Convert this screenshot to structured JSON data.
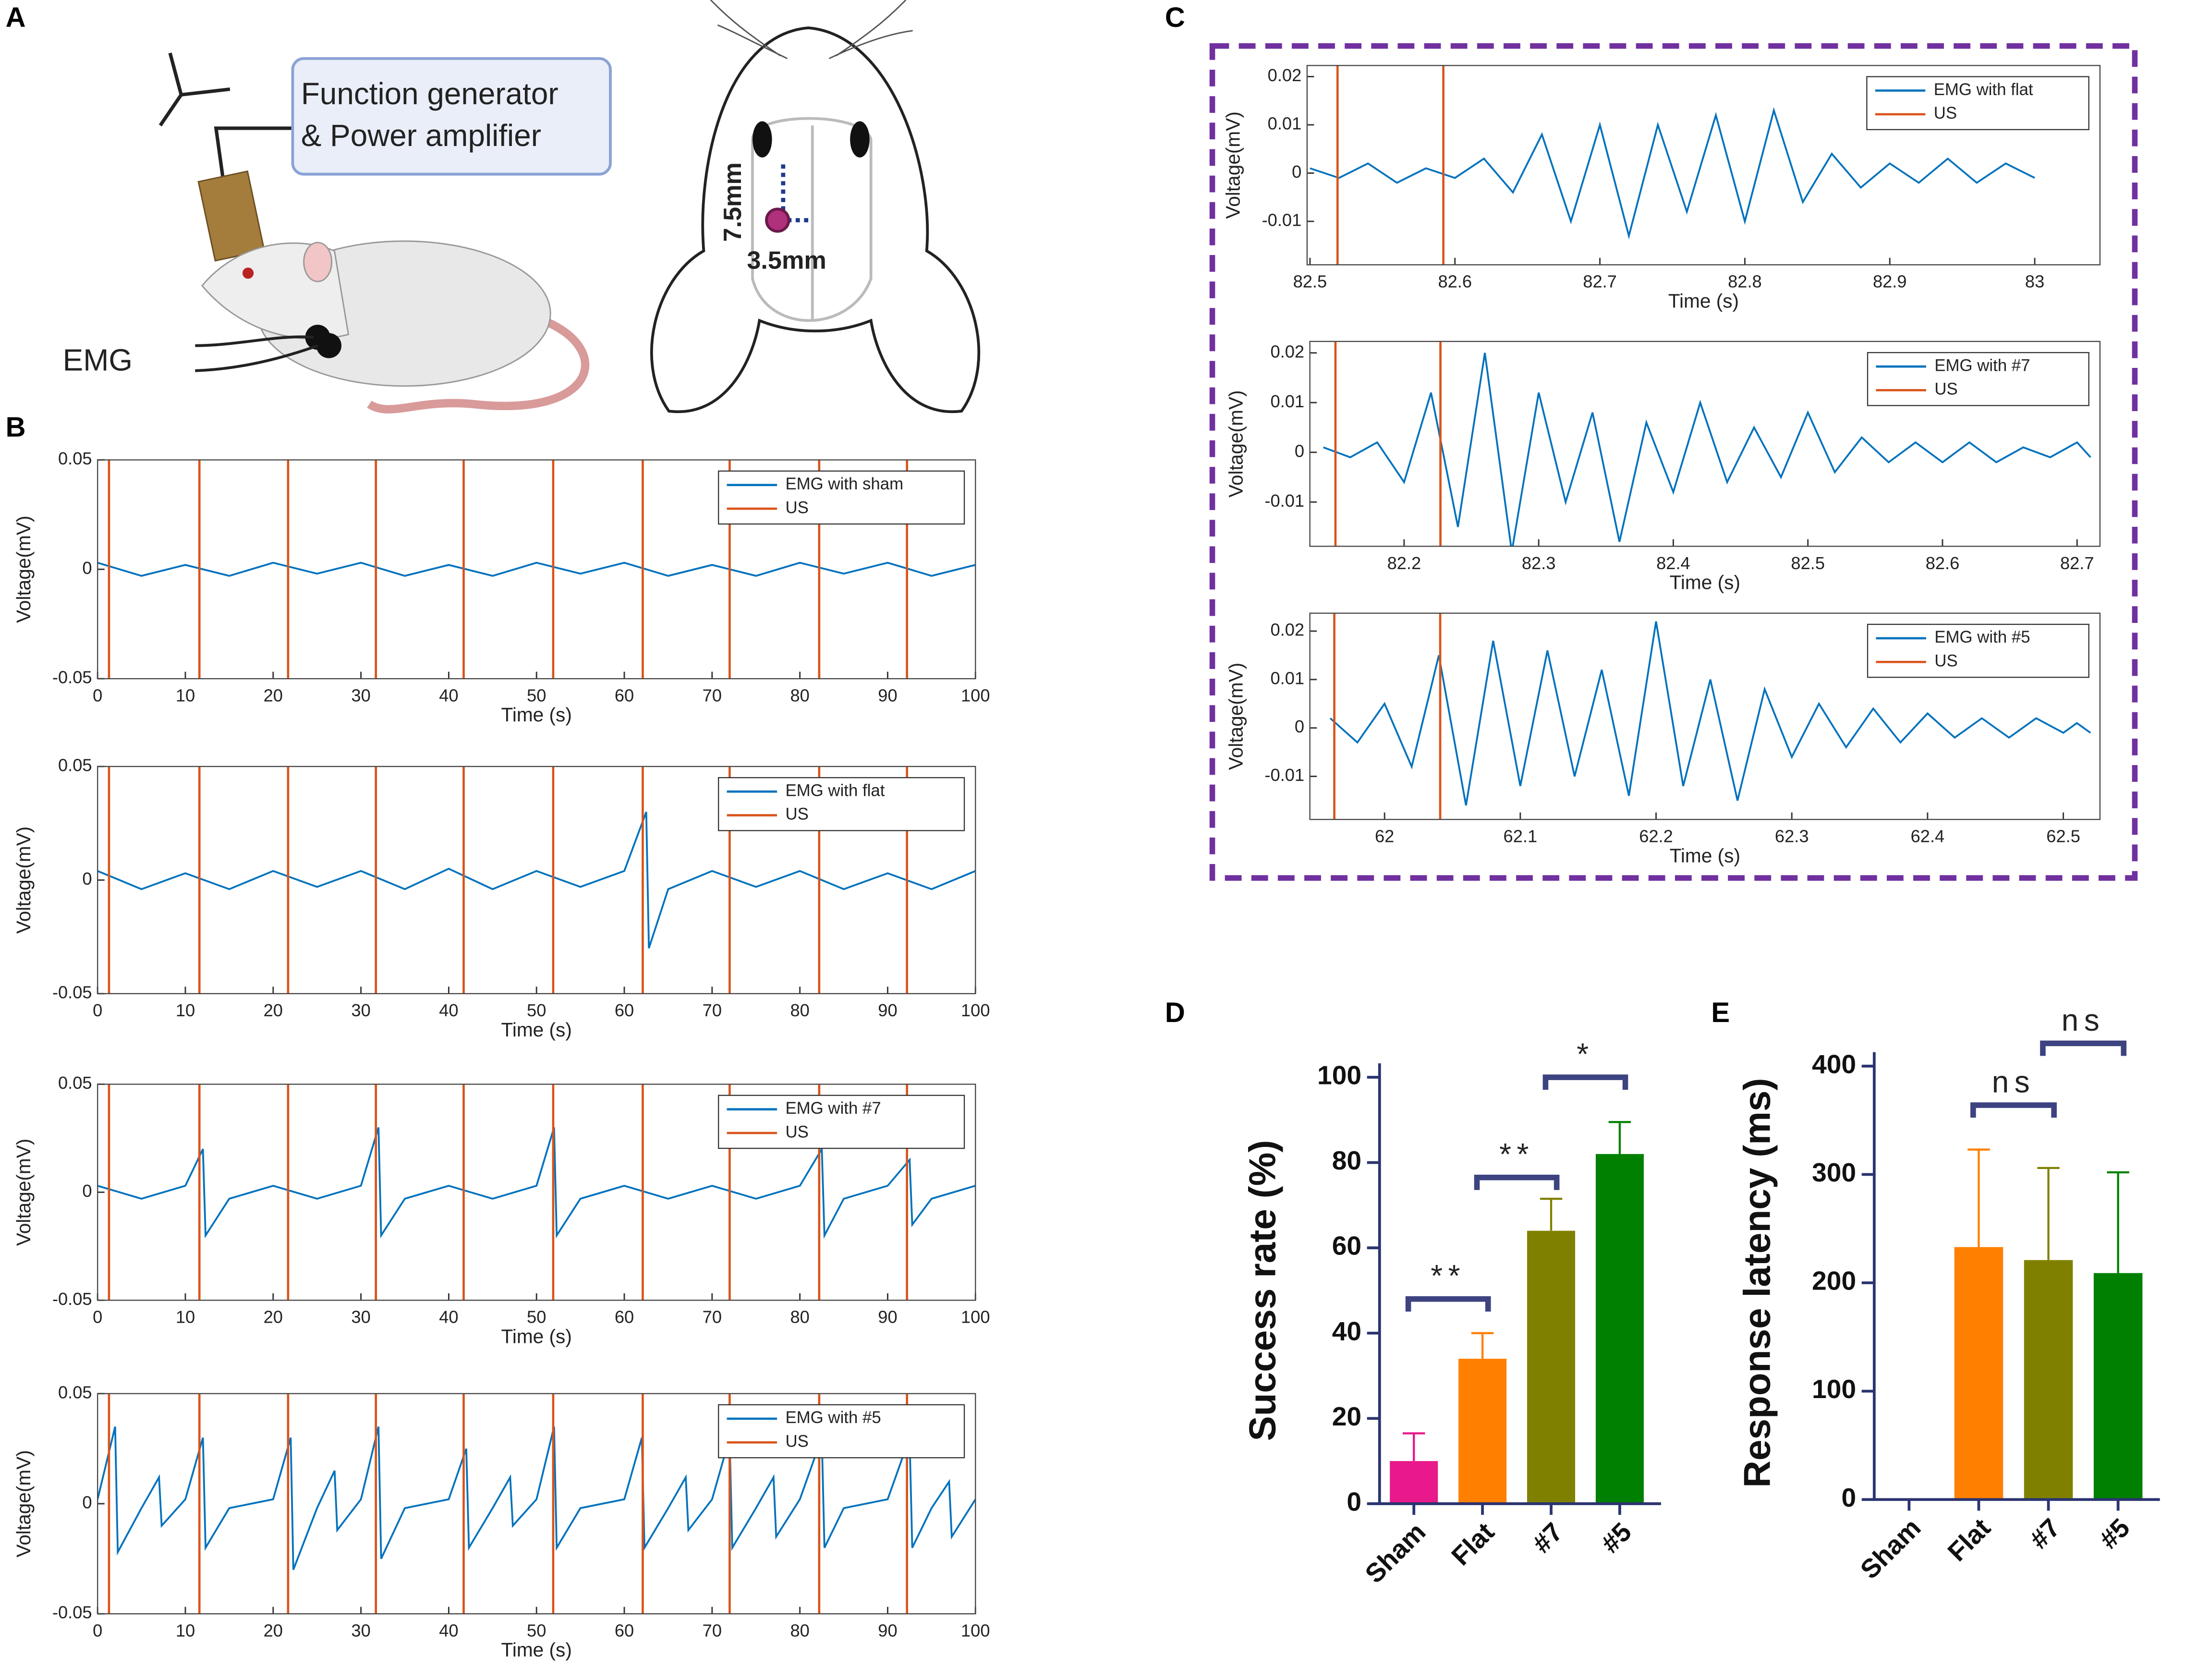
{
  "panel_labels": [
    "A",
    "B",
    "C",
    "D",
    "E"
  ],
  "panel_a": {
    "generator_lines": [
      "Function generator",
      "& Power amplifier"
    ],
    "emg": "EMG",
    "vertical_distance": "7.5mm",
    "lateral_distance": "3.5mm"
  },
  "chart_data": [
    {
      "type": "line",
      "xlabel": "Time (s)",
      "ylabel": "Voltage(mV)",
      "xlim": [
        0,
        100
      ],
      "xticks": [
        0,
        10,
        20,
        30,
        40,
        50,
        60,
        70,
        80,
        90,
        100
      ],
      "ylim": [
        -0.05,
        0.05
      ],
      "yticks": [
        -0.05,
        0,
        0.05
      ],
      "legend": "upper right",
      "series": [
        {
          "name": "EMG with sham",
          "color": "#0072bd",
          "x": [
            0,
            5,
            10,
            15,
            20,
            25,
            30,
            35,
            40,
            45,
            50,
            55,
            60,
            65,
            70,
            75,
            80,
            85,
            90,
            95,
            100
          ],
          "values": [
            0.003,
            -0.003,
            0.002,
            -0.003,
            0.003,
            -0.002,
            0.003,
            -0.003,
            0.002,
            -0.003,
            0.003,
            -0.002,
            0.003,
            -0.003,
            0.002,
            -0.003,
            0.003,
            -0.002,
            0.003,
            -0.003,
            0.002
          ]
        },
        {
          "name": "US",
          "color": "#d95319",
          "x": [
            1.3,
            11.6,
            21.7,
            31.7,
            41.7,
            51.9,
            62.1,
            72,
            82.2,
            92.2
          ]
        }
      ]
    },
    {
      "type": "line",
      "xlabel": "Time (s)",
      "ylabel": "Voltage(mV)",
      "xlim": [
        0,
        100
      ],
      "xticks": [
        0,
        10,
        20,
        30,
        40,
        50,
        60,
        70,
        80,
        90,
        100
      ],
      "ylim": [
        -0.05,
        0.05
      ],
      "yticks": [
        -0.05,
        0,
        0.05
      ],
      "legend": "upper right",
      "series": [
        {
          "name": "EMG with flat",
          "color": "#0072bd",
          "x": [
            0,
            5,
            10,
            15,
            20,
            25,
            30,
            35,
            40,
            45,
            50,
            55,
            60,
            62.5,
            62.8,
            65,
            70,
            75,
            80,
            85,
            90,
            95,
            100
          ],
          "values": [
            0.004,
            -0.004,
            0.003,
            -0.004,
            0.004,
            -0.003,
            0.004,
            -0.004,
            0.005,
            -0.004,
            0.004,
            -0.003,
            0.004,
            0.03,
            -0.03,
            -0.004,
            0.004,
            -0.003,
            0.004,
            -0.004,
            0.003,
            -0.004,
            0.004
          ]
        },
        {
          "name": "US",
          "color": "#d95319",
          "x": [
            1.3,
            11.6,
            21.7,
            31.7,
            41.7,
            51.9,
            62.1,
            72,
            82.2,
            92.2
          ]
        }
      ]
    },
    {
      "type": "line",
      "xlabel": "Time (s)",
      "ylabel": "Voltage(mV)",
      "xlim": [
        0,
        100
      ],
      "xticks": [
        0,
        10,
        20,
        30,
        40,
        50,
        60,
        70,
        80,
        90,
        100
      ],
      "ylim": [
        -0.05,
        0.05
      ],
      "yticks": [
        -0.05,
        0,
        0.05
      ],
      "legend": "upper right",
      "series": [
        {
          "name": "EMG with #7",
          "color": "#0072bd",
          "x": [
            0,
            5,
            10,
            12,
            12.3,
            15,
            20,
            25,
            30,
            32,
            32.3,
            35,
            40,
            45,
            50,
            52,
            52.3,
            55,
            60,
            65,
            70,
            75,
            80,
            82.5,
            82.8,
            85,
            90,
            92.5,
            92.8,
            95,
            100
          ],
          "values": [
            0.003,
            -0.003,
            0.003,
            0.02,
            -0.02,
            -0.003,
            0.003,
            -0.003,
            0.003,
            0.03,
            -0.02,
            -0.003,
            0.003,
            -0.003,
            0.003,
            0.03,
            -0.02,
            -0.003,
            0.003,
            -0.003,
            0.003,
            -0.003,
            0.003,
            0.02,
            -0.02,
            -0.003,
            0.003,
            0.015,
            -0.015,
            -0.003,
            0.003
          ]
        },
        {
          "name": "US",
          "color": "#d95319",
          "x": [
            1.3,
            11.6,
            21.7,
            31.7,
            41.7,
            51.9,
            62.1,
            72,
            82.2,
            92.2
          ]
        }
      ]
    },
    {
      "type": "line",
      "xlabel": "Time (s)",
      "ylabel": "Voltage(mV)",
      "xlim": [
        0,
        100
      ],
      "xticks": [
        0,
        10,
        20,
        30,
        40,
        50,
        60,
        70,
        80,
        90,
        100
      ],
      "ylim": [
        -0.05,
        0.05
      ],
      "yticks": [
        -0.05,
        0,
        0.05
      ],
      "legend": "upper right",
      "series": [
        {
          "name": "EMG with #5",
          "color": "#0072bd",
          "x": [
            0,
            2,
            2.3,
            5,
            7,
            7.3,
            10,
            12,
            12.3,
            15,
            20,
            22,
            22.3,
            25,
            27,
            27.3,
            30,
            32,
            32.3,
            35,
            40,
            42,
            42.3,
            45,
            47,
            47.3,
            50,
            52,
            52.3,
            55,
            60,
            62,
            62.3,
            65,
            67,
            67.3,
            70,
            72,
            72.3,
            75,
            77,
            77.3,
            80,
            82.5,
            82.8,
            85,
            90,
            92.5,
            92.8,
            95,
            97,
            97.3,
            100
          ],
          "values": [
            0.002,
            0.035,
            -0.022,
            -0.002,
            0.012,
            -0.01,
            0.002,
            0.03,
            -0.02,
            -0.002,
            0.002,
            0.03,
            -0.03,
            -0.002,
            0.015,
            -0.012,
            0.002,
            0.035,
            -0.025,
            -0.002,
            0.002,
            0.025,
            -0.02,
            -0.002,
            0.012,
            -0.01,
            0.002,
            0.035,
            -0.02,
            -0.002,
            0.002,
            0.03,
            -0.02,
            -0.002,
            0.012,
            -0.012,
            0.002,
            0.03,
            -0.02,
            -0.002,
            0.012,
            -0.015,
            0.002,
            0.03,
            -0.02,
            -0.002,
            0.002,
            0.03,
            -0.02,
            -0.002,
            0.01,
            -0.015,
            0.002
          ]
        },
        {
          "name": "US",
          "color": "#d95319",
          "x": [
            1.3,
            11.6,
            21.7,
            31.7,
            41.7,
            51.9,
            62.1,
            72,
            82.2,
            92.2
          ]
        }
      ]
    },
    {
      "type": "line",
      "xlabel": "Time (s)",
      "ylabel": "Voltage(mV)",
      "xlim": [
        82.498,
        83.045
      ],
      "xticks": [
        82.5,
        82.6,
        82.7,
        82.8,
        82.9,
        83
      ],
      "ylim": [
        -0.019,
        0.0223
      ],
      "yticks": [
        -0.01,
        0,
        0.01,
        0.02
      ],
      "legend": "upper right",
      "series": [
        {
          "name": "EMG with flat",
          "color": "#0072bd",
          "x": [
            82.5,
            82.52,
            82.54,
            82.56,
            82.58,
            82.6,
            82.62,
            82.64,
            82.66,
            82.68,
            82.7,
            82.72,
            82.74,
            82.76,
            82.78,
            82.8,
            82.82,
            82.84,
            82.86,
            82.88,
            82.9,
            82.92,
            82.94,
            82.96,
            82.98,
            83
          ],
          "values": [
            0.001,
            -0.001,
            0.002,
            -0.002,
            0.001,
            -0.001,
            0.003,
            -0.004,
            0.008,
            -0.01,
            0.01,
            -0.013,
            0.01,
            -0.008,
            0.012,
            -0.01,
            0.013,
            -0.006,
            0.004,
            -0.003,
            0.002,
            -0.002,
            0.003,
            -0.002,
            0.002,
            -0.001
          ]
        },
        {
          "name": "US",
          "color": "#d95319",
          "x": [
            82.519,
            82.592
          ]
        }
      ]
    },
    {
      "type": "line",
      "xlabel": "Time (s)",
      "ylabel": "Voltage(mV)",
      "xlim": [
        82.13,
        82.717
      ],
      "xticks": [
        82.2,
        82.3,
        82.4,
        82.5,
        82.6,
        82.7
      ],
      "ylim": [
        -0.0189,
        0.0223
      ],
      "yticks": [
        -0.01,
        0,
        0.01,
        0.02
      ],
      "legend": "upper right",
      "series": [
        {
          "name": "EMG with #7",
          "color": "#0072bd",
          "x": [
            82.14,
            82.16,
            82.18,
            82.2,
            82.22,
            82.24,
            82.26,
            82.28,
            82.3,
            82.32,
            82.34,
            82.36,
            82.38,
            82.4,
            82.42,
            82.44,
            82.46,
            82.48,
            82.5,
            82.52,
            82.54,
            82.56,
            82.58,
            82.6,
            82.62,
            82.64,
            82.66,
            82.68,
            82.7,
            82.71
          ],
          "values": [
            0.001,
            -0.001,
            0.002,
            -0.006,
            0.012,
            -0.015,
            0.02,
            -0.02,
            0.012,
            -0.01,
            0.008,
            -0.018,
            0.006,
            -0.008,
            0.01,
            -0.006,
            0.005,
            -0.005,
            0.008,
            -0.004,
            0.003,
            -0.002,
            0.002,
            -0.002,
            0.002,
            -0.002,
            0.001,
            -0.001,
            0.002,
            -0.001
          ]
        },
        {
          "name": "US",
          "color": "#d95319",
          "x": [
            82.149,
            82.227
          ]
        }
      ]
    },
    {
      "type": "line",
      "xlabel": "Time (s)",
      "ylabel": "Voltage(mV)",
      "xlim": [
        61.945,
        62.527
      ],
      "xticks": [
        62,
        62.1,
        62.2,
        62.3,
        62.4,
        62.5
      ],
      "ylim": [
        -0.0189,
        0.0237
      ],
      "yticks": [
        -0.01,
        0,
        0.01,
        0.02
      ],
      "legend": "upper right",
      "series": [
        {
          "name": "EMG with #5",
          "color": "#0072bd",
          "x": [
            61.96,
            61.98,
            62,
            62.02,
            62.04,
            62.06,
            62.08,
            62.1,
            62.12,
            62.14,
            62.16,
            62.18,
            62.2,
            62.22,
            62.24,
            62.26,
            62.28,
            62.3,
            62.32,
            62.34,
            62.36,
            62.38,
            62.4,
            62.42,
            62.44,
            62.46,
            62.48,
            62.5,
            62.51,
            62.52
          ],
          "values": [
            0.002,
            -0.003,
            0.005,
            -0.008,
            0.015,
            -0.016,
            0.018,
            -0.012,
            0.016,
            -0.01,
            0.012,
            -0.014,
            0.022,
            -0.012,
            0.01,
            -0.015,
            0.008,
            -0.006,
            0.005,
            -0.004,
            0.004,
            -0.003,
            0.003,
            -0.002,
            0.002,
            -0.002,
            0.002,
            -0.001,
            0.001,
            -0.001
          ]
        },
        {
          "name": "US",
          "color": "#d95319",
          "x": [
            61.963,
            62.041
          ]
        }
      ]
    },
    {
      "type": "bar",
      "ylabel": "Success rate (%)",
      "categories": [
        "Sham",
        "Flat",
        "#7",
        "#5"
      ],
      "values": [
        10,
        34,
        64,
        82
      ],
      "errors": [
        6.5,
        6,
        7.5,
        7.5
      ],
      "colors": [
        "#e8198b",
        "#ff8000",
        "#808000",
        "#008000"
      ],
      "ylim": [
        0,
        100
      ],
      "yticks": [
        0,
        20,
        40,
        60,
        80,
        100
      ],
      "annotations": [
        {
          "text": "**",
          "between": [
            "Sham",
            "Flat"
          ],
          "y": 48
        },
        {
          "text": "**",
          "between": [
            "Flat",
            "#7"
          ],
          "y": 76.5
        },
        {
          "text": "*",
          "between": [
            "#7",
            "#5"
          ],
          "y": 100
        }
      ]
    },
    {
      "type": "bar",
      "ylabel": "Response latency (ms)",
      "categories": [
        "Sham",
        "Flat",
        "#7",
        "#5"
      ],
      "values": [
        null,
        233,
        221,
        209
      ],
      "errors": [
        null,
        90,
        85,
        93
      ],
      "colors": [
        "#e8198b",
        "#ff8000",
        "#808000",
        "#008000"
      ],
      "ylim": [
        0,
        400
      ],
      "yticks": [
        0,
        100,
        200,
        300,
        400
      ],
      "annotations": [
        {
          "text": "ns",
          "between": [
            "Flat",
            "#7"
          ],
          "y": 364
        },
        {
          "text": "ns",
          "between": [
            "#7",
            "#5"
          ],
          "y": 421
        }
      ]
    }
  ]
}
